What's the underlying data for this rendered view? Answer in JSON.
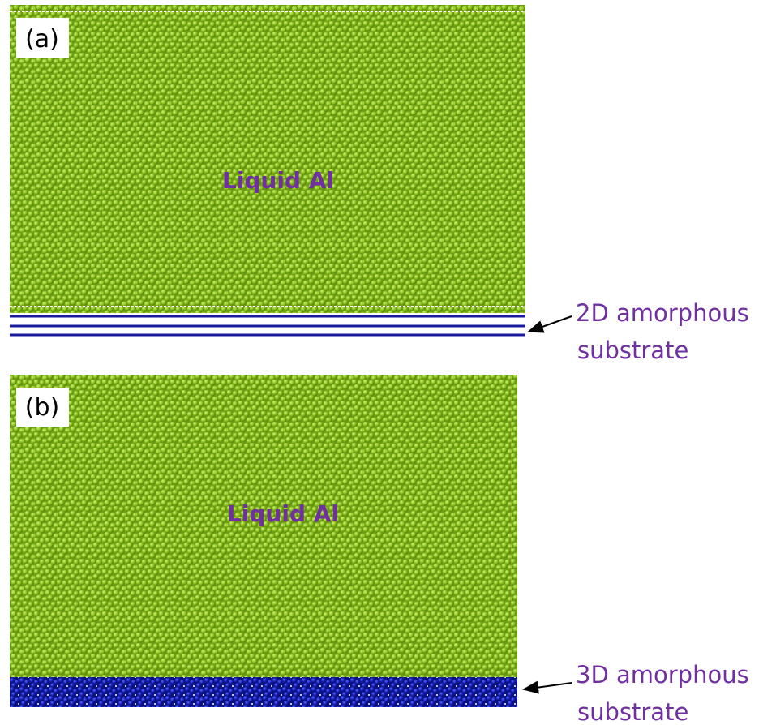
{
  "panels": [
    {
      "label": "(a)",
      "region_label": "Liquid Al",
      "substrate_label": [
        "2D amorphous",
        "substrate"
      ]
    },
    {
      "label": "(b)",
      "region_label": "Liquid Al",
      "substrate_label": [
        "3D amorphous",
        "substrate"
      ]
    }
  ]
}
